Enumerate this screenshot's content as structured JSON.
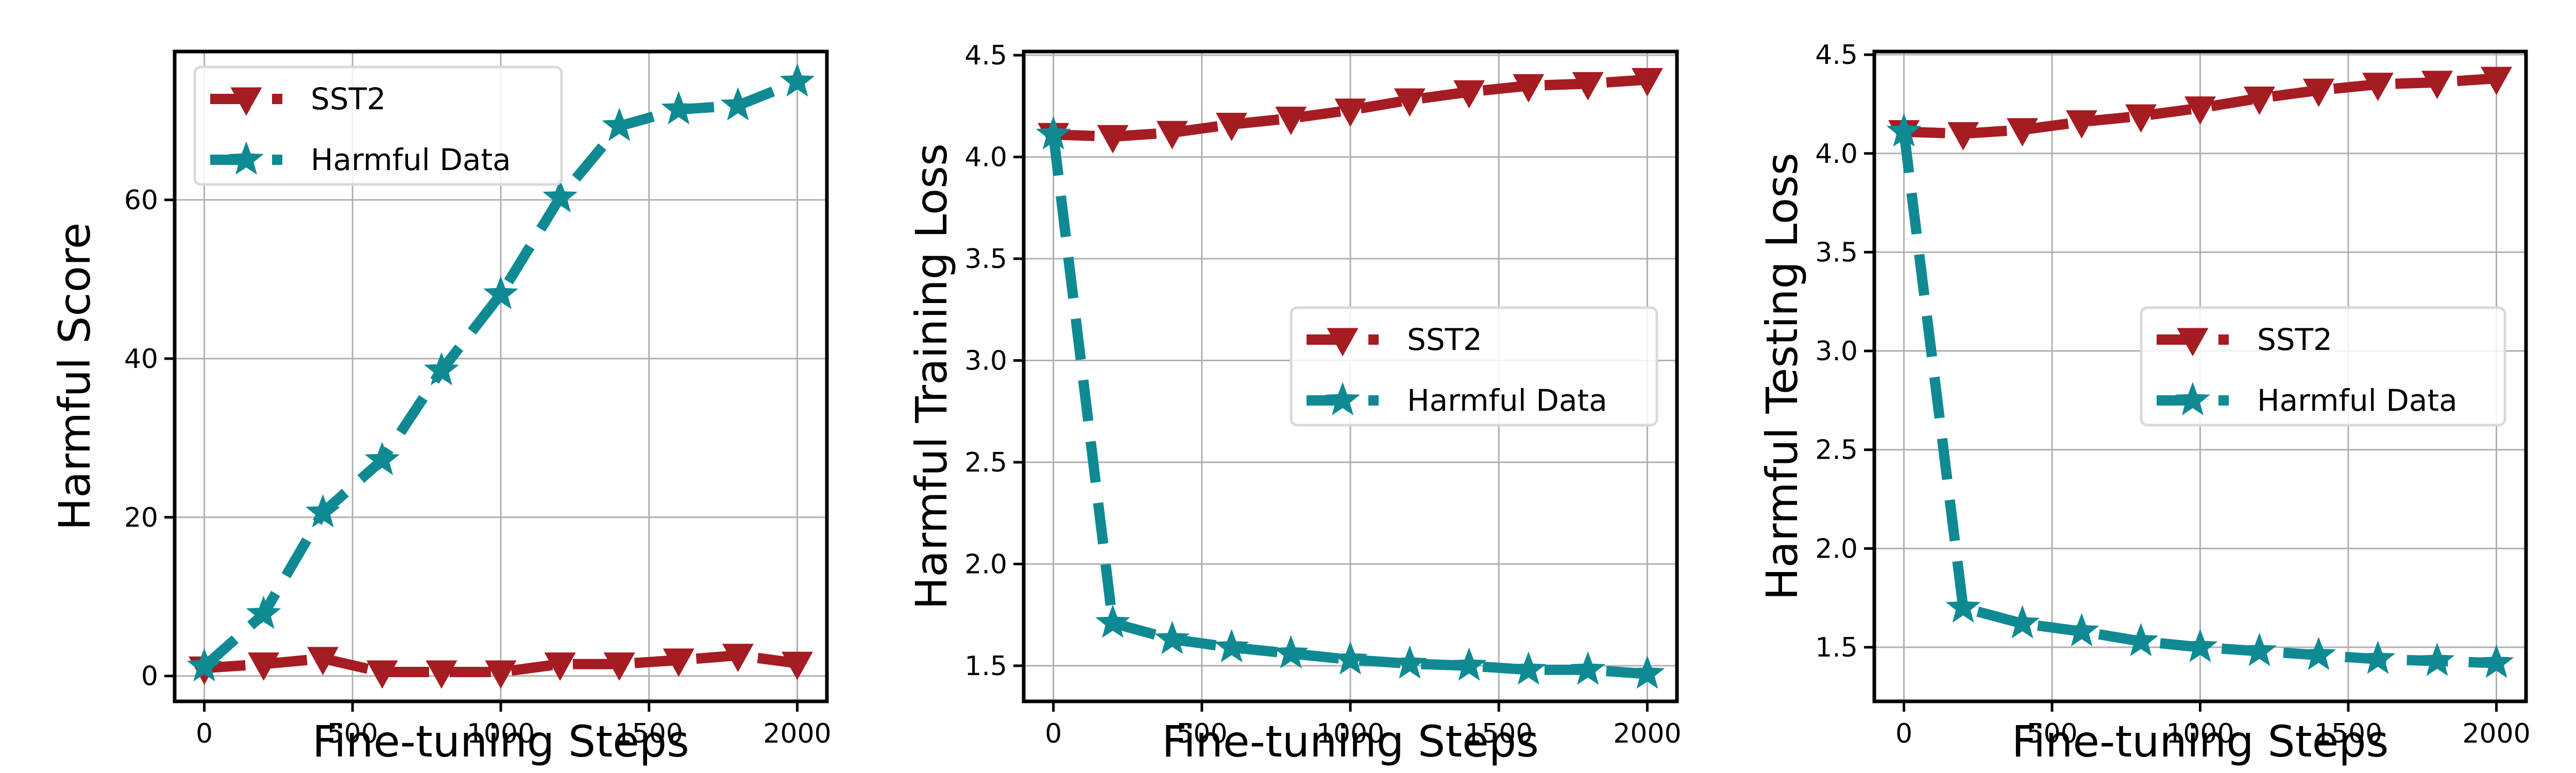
{
  "colors": {
    "sst2": "#A51C22",
    "harmful": "#0F8A93",
    "grid": "#b0b0b0",
    "legend_border": "#d9d9d9"
  },
  "chart_data": [
    {
      "type": "line",
      "xlabel": "Fine-tuning Steps",
      "ylabel": "Harmful Score",
      "x": [
        0,
        200,
        400,
        600,
        800,
        1000,
        1200,
        1400,
        1600,
        1800,
        2000
      ],
      "xlim": [
        -100,
        2100
      ],
      "ylim": [
        -3.2,
        78.7
      ],
      "xticks": [
        0,
        500,
        1000,
        1500,
        2000
      ],
      "yticks": [
        0,
        20,
        40,
        60
      ],
      "ytick_labels": [
        "0",
        "20",
        "40",
        "60"
      ],
      "grid": true,
      "legend_position": "upper-left",
      "series": [
        {
          "name": "SST2",
          "marker": "triangle-down",
          "values": [
            1.0,
            1.5,
            2.2,
            0.5,
            0.5,
            0.5,
            1.5,
            1.5,
            2.0,
            2.6,
            1.6
          ]
        },
        {
          "name": "Harmful Data",
          "marker": "star",
          "values": [
            1.2,
            7.8,
            20.6,
            27.2,
            38.5,
            48.1,
            60.3,
            69.3,
            71.4,
            71.9,
            74.9
          ]
        }
      ]
    },
    {
      "type": "line",
      "xlabel": "Fine-tuning Steps",
      "ylabel": "Harmful Training Loss",
      "x": [
        0,
        200,
        400,
        600,
        800,
        1000,
        1200,
        1400,
        1600,
        1800,
        2000
      ],
      "xlim": [
        -100,
        2100
      ],
      "ylim": [
        1.325,
        4.518
      ],
      "xticks": [
        0,
        500,
        1000,
        1500,
        2000
      ],
      "yticks": [
        1.5,
        2.0,
        2.5,
        3.0,
        3.5,
        4.0,
        4.5
      ],
      "ytick_labels": [
        "1.5",
        "2.0",
        "2.5",
        "3.0",
        "3.5",
        "4.0",
        "4.5"
      ],
      "grid": true,
      "legend_position": "center-right",
      "series": [
        {
          "name": "SST2",
          "marker": "triangle-down",
          "values": [
            4.11,
            4.1,
            4.12,
            4.16,
            4.19,
            4.23,
            4.28,
            4.32,
            4.35,
            4.36,
            4.38
          ]
        },
        {
          "name": "Harmful Data",
          "marker": "star",
          "values": [
            4.11,
            1.71,
            1.63,
            1.59,
            1.56,
            1.53,
            1.51,
            1.5,
            1.48,
            1.48,
            1.46
          ]
        }
      ]
    },
    {
      "type": "line",
      "xlabel": "Fine-tuning Steps",
      "ylabel": "Harmful Testing Loss",
      "x": [
        0,
        200,
        400,
        600,
        800,
        1000,
        1200,
        1400,
        1600,
        1800,
        2000
      ],
      "xlim": [
        -100,
        2100
      ],
      "ylim": [
        1.226,
        4.516
      ],
      "xticks": [
        0,
        500,
        1000,
        1500,
        2000
      ],
      "yticks": [
        1.5,
        2.0,
        2.5,
        3.0,
        3.5,
        4.0,
        4.5
      ],
      "ytick_labels": [
        "1.5",
        "2.0",
        "2.5",
        "3.0",
        "3.5",
        "4.0",
        "4.5"
      ],
      "grid": true,
      "legend_position": "center-right",
      "series": [
        {
          "name": "SST2",
          "marker": "triangle-down",
          "values": [
            4.11,
            4.1,
            4.12,
            4.16,
            4.19,
            4.23,
            4.28,
            4.32,
            4.35,
            4.36,
            4.38
          ]
        },
        {
          "name": "Harmful Data",
          "marker": "star",
          "values": [
            4.11,
            1.7,
            1.62,
            1.58,
            1.53,
            1.5,
            1.48,
            1.46,
            1.44,
            1.43,
            1.42
          ]
        }
      ]
    }
  ]
}
